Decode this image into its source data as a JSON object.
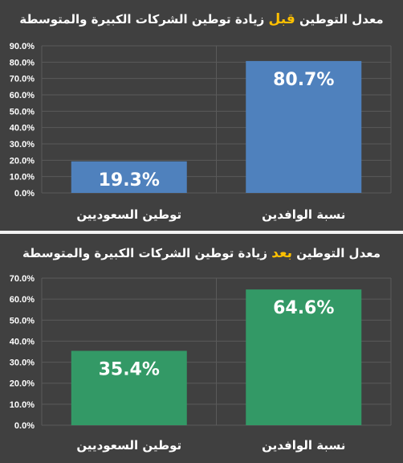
{
  "chart_data": [
    {
      "type": "bar",
      "title_before": "معدل التوطين",
      "title_highlight": "قبل",
      "title_after": "زيادة توطين الشركات الكبيرة والمتوسطة",
      "categories": [
        "توطين السعوديين",
        "نسبة الوافدين"
      ],
      "values": [
        19.3,
        80.7
      ],
      "value_labels": [
        "19.3%",
        "80.7%"
      ],
      "ylim": [
        0,
        90
      ],
      "yticks": [
        "0.0%",
        "10.0%",
        "20.0%",
        "30.0%",
        "40.0%",
        "50.0%",
        "60.0%",
        "70.0%",
        "80.0%",
        "90.0%"
      ],
      "bar_color": "#4f81bd",
      "highlight_color": "#ffc000",
      "grid": true
    },
    {
      "type": "bar",
      "title_before": "معدل التوطين",
      "title_highlight": "بعد",
      "title_after": "زيادة توطين الشركات الكبيرة والمتوسطة",
      "categories": [
        "توطين السعوديين",
        "نسبة الوافدين"
      ],
      "values": [
        35.4,
        64.6
      ],
      "value_labels": [
        "35.4%",
        "64.6%"
      ],
      "ylim": [
        0,
        70
      ],
      "yticks": [
        "0.0%",
        "10.0%",
        "20.0%",
        "30.0%",
        "40.0%",
        "50.0%",
        "60.0%",
        "70.0%"
      ],
      "bar_color": "#339966",
      "highlight_color": "#ffc000",
      "grid": true
    }
  ]
}
